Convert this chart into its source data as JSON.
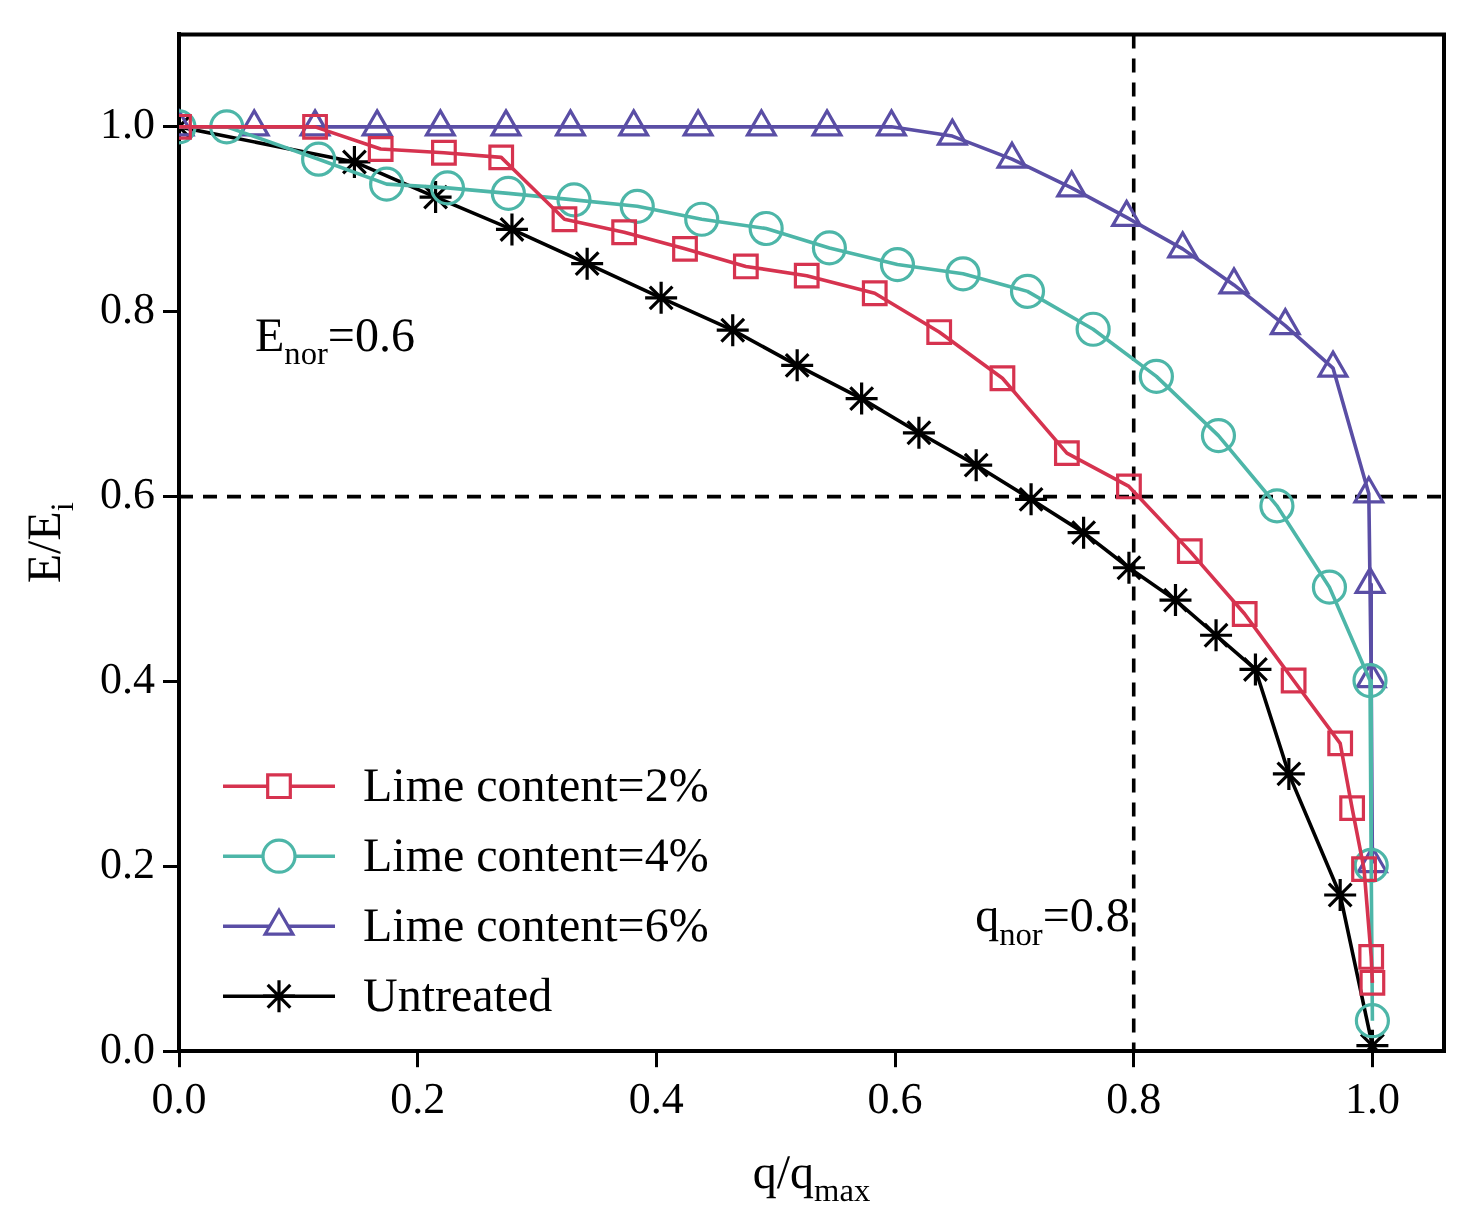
{
  "chart_data": {
    "type": "line",
    "xlabel": "q/q$_{max}$",
    "ylabel": "E/E$_{i}$",
    "xlim": [
      0,
      1.06
    ],
    "xticks": [
      {
        "value": 0,
        "label": "0.0"
      },
      0.2,
      0.4,
      0.6,
      0.8,
      {
        "value": 1,
        "label": "1.0"
      }
    ],
    "ylim": [
      0,
      1.1
    ],
    "yticks": [
      {
        "value": 0,
        "label": "0.0"
      },
      0.2,
      0.4,
      0.6,
      0.8,
      {
        "value": 1,
        "label": "1.0"
      }
    ],
    "grid": false,
    "legend": "bottom left",
    "line_style": "solid",
    "ref_lines": [
      {
        "axis": "y",
        "value": 0.6,
        "label": "E$_{nor}$=0.6",
        "color": "#000000",
        "line_style": "dashed"
      },
      {
        "axis": "x",
        "value": 0.8,
        "label": "q$_{nor}$=0.8",
        "color": "#000000",
        "line_style": "dashed"
      }
    ],
    "series": [
      {
        "name": "Lime content=2%",
        "color": "#d6334f",
        "marker": "square",
        "x": [
          0,
          0.114,
          0.169,
          0.222,
          0.27,
          0.323,
          0.373,
          0.424,
          0.475,
          0.526,
          0.583,
          0.637,
          0.69,
          0.744,
          0.796,
          0.847,
          0.893,
          0.934,
          0.973,
          0.983,
          0.993,
          0.999,
          1.0
        ],
        "values": [
          1.0,
          1.0,
          0.976,
          0.972,
          0.967,
          0.9,
          0.886,
          0.868,
          0.849,
          0.839,
          0.82,
          0.778,
          0.728,
          0.647,
          0.611,
          0.541,
          0.473,
          0.401,
          0.333,
          0.263,
          0.197,
          0.102,
          0.074
        ]
      },
      {
        "name": "Lime content=4%",
        "color": "#4db6a8",
        "marker": "circle",
        "x": [
          0,
          0.04,
          0.117,
          0.174,
          0.225,
          0.276,
          0.331,
          0.384,
          0.438,
          0.492,
          0.545,
          0.602,
          0.657,
          0.711,
          0.766,
          0.819,
          0.871,
          0.92,
          0.964,
          0.998,
          0.999,
          1.0
        ],
        "values": [
          1.0,
          1.0,
          0.965,
          0.938,
          0.934,
          0.928,
          0.921,
          0.914,
          0.9,
          0.89,
          0.869,
          0.851,
          0.841,
          0.822,
          0.781,
          0.73,
          0.666,
          0.59,
          0.502,
          0.401,
          0.201,
          0.033
        ]
      },
      {
        "name": "Lime content=6%",
        "color": "#5a4ea5",
        "marker": "triangle",
        "x": [
          0,
          0.063,
          0.114,
          0.166,
          0.219,
          0.274,
          0.328,
          0.381,
          0.435,
          0.488,
          0.543,
          0.597,
          0.648,
          0.698,
          0.748,
          0.794,
          0.841,
          0.884,
          0.927,
          0.967,
          0.997,
          0.998,
          0.999,
          1.0
        ],
        "values": [
          1.0,
          1.0,
          1.0,
          1.0,
          1.0,
          1.0,
          1.0,
          1.0,
          1.0,
          1.0,
          1.0,
          1.0,
          0.99,
          0.965,
          0.934,
          0.902,
          0.868,
          0.829,
          0.785,
          0.739,
          0.603,
          0.505,
          0.403,
          0.203
        ]
      },
      {
        "name": "Untreated",
        "color": "#000000",
        "marker": "cross",
        "x": [
          0,
          0.147,
          0.215,
          0.279,
          0.342,
          0.404,
          0.464,
          0.518,
          0.572,
          0.62,
          0.668,
          0.714,
          0.758,
          0.796,
          0.835,
          0.869,
          0.902,
          0.93,
          0.973,
          1.0
        ],
        "values": [
          1.0,
          0.962,
          0.924,
          0.889,
          0.852,
          0.815,
          0.78,
          0.742,
          0.706,
          0.669,
          0.634,
          0.597,
          0.561,
          0.523,
          0.488,
          0.45,
          0.413,
          0.3,
          0.169,
          0.006
        ]
      }
    ]
  }
}
